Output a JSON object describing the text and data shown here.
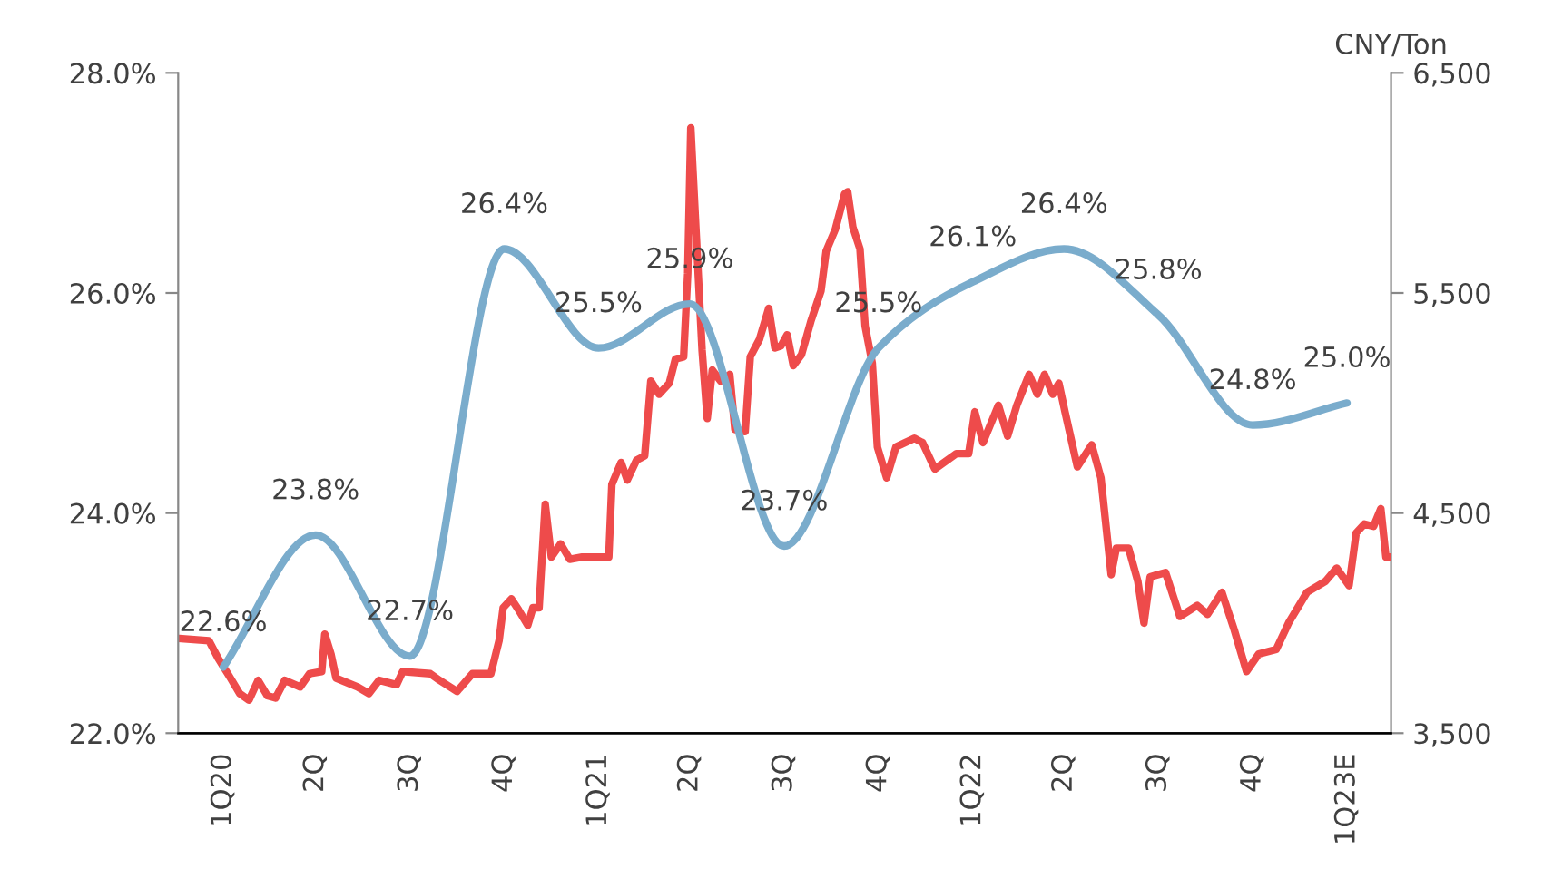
{
  "chart_data": {
    "type": "line",
    "xlim": [
      "2020-01-02",
      "2023-03-30"
    ],
    "xticks": [
      {
        "value": "2020-02-15",
        "label": "1Q20"
      },
      {
        "value": "2020-05-15",
        "label": "2Q"
      },
      {
        "value": "2020-08-15",
        "label": "3Q"
      },
      {
        "value": "2020-11-15",
        "label": "4Q"
      },
      {
        "value": "2021-02-15",
        "label": "1Q21"
      },
      {
        "value": "2021-05-15",
        "label": "2Q"
      },
      {
        "value": "2021-08-15",
        "label": "3Q"
      },
      {
        "value": "2021-11-15",
        "label": "4Q"
      },
      {
        "value": "2022-02-15",
        "label": "1Q22"
      },
      {
        "value": "2022-05-15",
        "label": "2Q"
      },
      {
        "value": "2022-08-15",
        "label": "3Q"
      },
      {
        "value": "2022-11-15",
        "label": "4Q"
      },
      {
        "value": "2023-02-15",
        "label": "1Q23E"
      }
    ],
    "y2label": "CNY/Ton",
    "ylim": [
      22,
      28
    ],
    "yticks": [
      {
        "value": 22,
        "label": "22.0%"
      },
      {
        "value": 24,
        "label": "24.0%"
      },
      {
        "value": 26,
        "label": "26.0%"
      },
      {
        "value": 28,
        "label": "28.0%"
      }
    ],
    "y2lim": [
      3500,
      6500
    ],
    "y2ticks": [
      {
        "value": 3500,
        "label": "3,500"
      },
      {
        "value": 4500,
        "label": "4,500"
      },
      {
        "value": 5500,
        "label": "5,500"
      },
      {
        "value": 6500,
        "label": "6,500"
      }
    ],
    "grid": false,
    "marker": "none",
    "series": [
      {
        "color": "#7aaccc",
        "x": [
          "2020-02-15",
          "2020-05-15",
          "2020-08-15",
          "2020-11-15",
          "2021-02-15",
          "2021-05-15",
          "2021-08-15",
          "2021-11-15",
          "2022-02-15",
          "2022-05-15",
          "2022-08-15",
          "2022-11-15",
          "2023-02-15"
        ],
        "values": [
          22.6,
          23.8,
          22.7,
          26.4,
          25.5,
          25.9,
          23.7,
          25.5,
          26.1,
          26.4,
          25.8,
          24.8,
          25.0
        ],
        "value_labels": [
          "22.6%",
          "23.8%",
          "22.7%",
          "26.4%",
          "25.5%",
          "25.9%",
          "23.7%",
          "25.5%",
          "26.1%",
          "26.4%",
          "25.8%",
          "24.8%",
          "25.0%"
        ]
      },
      {
        "color": "#ee4b4b",
        "axis": "y2",
        "x": [
          "2020-01-03",
          "2020-02-01",
          "2020-02-10",
          "2020-02-22",
          "2020-03-02",
          "2020-03-11",
          "2020-03-20",
          "2020-03-29",
          "2020-04-06",
          "2020-04-15",
          "2020-04-30",
          "2020-05-09",
          "2020-05-21",
          "2020-05-24",
          "2020-05-30",
          "2020-06-04",
          "2020-06-25",
          "2020-07-06",
          "2020-07-16",
          "2020-08-02",
          "2020-08-08",
          "2020-09-04",
          "2020-09-13",
          "2020-09-30",
          "2020-10-15",
          "2020-11-02",
          "2020-11-10",
          "2020-11-14",
          "2020-11-22",
          "2020-11-29",
          "2020-12-08",
          "2020-12-13",
          "2020-12-19",
          "2020-12-25",
          "2020-12-31",
          "2021-01-09",
          "2021-01-18",
          "2021-01-30",
          "2021-02-25",
          "2021-02-28",
          "2021-03-09",
          "2021-03-15",
          "2021-03-24",
          "2021-04-01",
          "2021-04-07",
          "2021-04-15",
          "2021-04-25",
          "2021-05-01",
          "2021-05-09",
          "2021-05-13",
          "2021-05-16",
          "2021-05-21",
          "2021-05-27",
          "2021-06-01",
          "2021-06-06",
          "2021-06-14",
          "2021-06-23",
          "2021-06-28",
          "2021-07-08",
          "2021-07-13",
          "2021-07-22",
          "2021-07-31",
          "2021-08-06",
          "2021-08-12",
          "2021-08-18",
          "2021-08-24",
          "2021-09-01",
          "2021-09-10",
          "2021-09-20",
          "2021-09-25",
          "2021-10-04",
          "2021-10-13",
          "2021-10-16",
          "2021-10-21",
          "2021-10-28",
          "2021-11-02",
          "2021-11-09",
          "2021-11-14",
          "2021-11-23",
          "2021-12-02",
          "2021-12-20",
          "2021-12-28",
          "2022-01-09",
          "2022-01-30",
          "2022-02-11",
          "2022-02-17",
          "2022-02-25",
          "2022-03-12",
          "2022-03-21",
          "2022-03-30",
          "2022-04-11",
          "2022-04-19",
          "2022-04-26",
          "2022-05-04",
          "2022-05-10",
          "2022-05-16",
          "2022-05-28",
          "2022-06-11",
          "2022-06-20",
          "2022-06-30",
          "2022-07-05",
          "2022-07-17",
          "2022-07-26",
          "2022-08-01",
          "2022-08-07",
          "2022-08-22",
          "2022-09-05",
          "2022-09-22",
          "2022-10-02",
          "2022-10-16",
          "2022-10-28",
          "2022-11-09",
          "2022-11-21",
          "2022-12-08",
          "2022-12-20",
          "2023-01-07",
          "2023-01-25",
          "2023-02-05",
          "2023-02-17",
          "2023-02-24",
          "2023-03-04",
          "2023-03-13",
          "2023-03-20",
          "2023-03-25",
          "2023-03-30"
        ],
        "values": [
          3930,
          3920,
          3840,
          3750,
          3680,
          3650,
          3740,
          3670,
          3660,
          3740,
          3710,
          3770,
          3780,
          3950,
          3860,
          3750,
          3710,
          3680,
          3740,
          3720,
          3780,
          3770,
          3740,
          3690,
          3770,
          3770,
          3920,
          4070,
          4110,
          4060,
          3990,
          4070,
          4070,
          4540,
          4300,
          4360,
          4290,
          4300,
          4300,
          4630,
          4730,
          4650,
          4740,
          4760,
          5100,
          5040,
          5090,
          5200,
          5210,
          5590,
          6250,
          5790,
          5240,
          4930,
          5150,
          5100,
          5130,
          4880,
          4870,
          5210,
          5290,
          5430,
          5250,
          5260,
          5310,
          5170,
          5220,
          5370,
          5510,
          5690,
          5790,
          5950,
          5960,
          5800,
          5700,
          5350,
          5180,
          4800,
          4660,
          4800,
          4840,
          4820,
          4700,
          4770,
          4770,
          4960,
          4820,
          4990,
          4850,
          4990,
          5130,
          5040,
          5130,
          5040,
          5090,
          4960,
          4710,
          4810,
          4660,
          4220,
          4340,
          4340,
          4190,
          4000,
          4210,
          4230,
          4030,
          4080,
          4040,
          4140,
          3970,
          3780,
          3860,
          3880,
          4000,
          4140,
          4190,
          4250,
          4170,
          4410,
          4450,
          4440,
          4520,
          4300,
          4300
        ]
      }
    ]
  }
}
